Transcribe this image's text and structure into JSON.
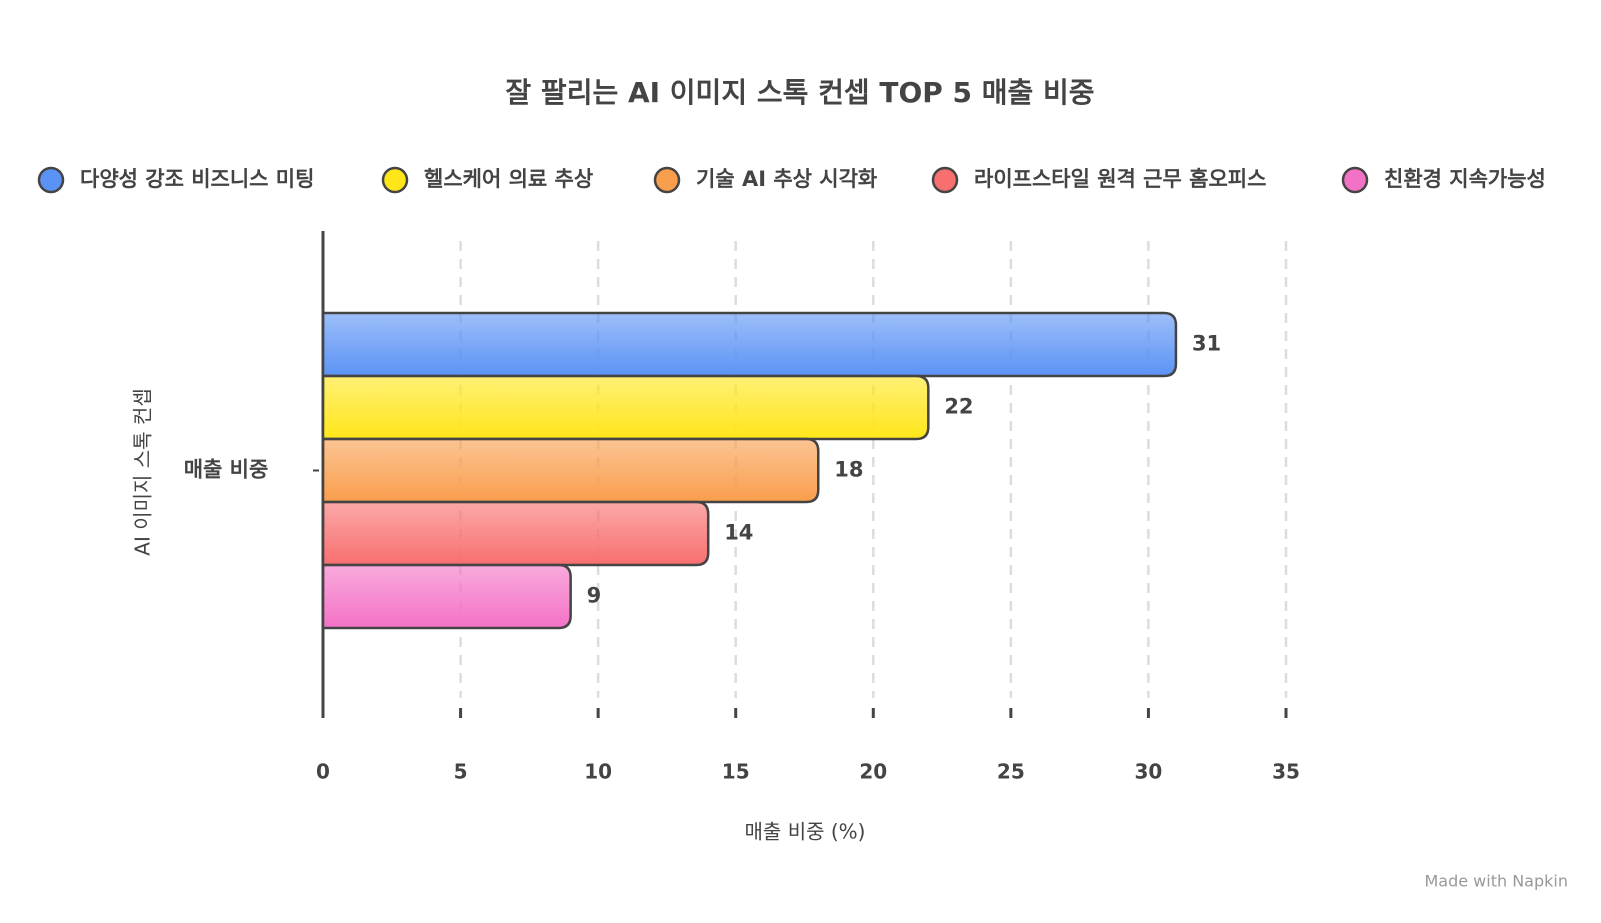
{
  "chart_data": {
    "type": "bar",
    "orientation": "horizontal",
    "title": "잘 팔리는 AI 이미지 스톡 컨셉 TOP 5 매출 비중",
    "categories": [
      "매출 비중"
    ],
    "series": [
      {
        "name": "다양성 강조 비즈니스 미팅",
        "color": "#5b93f5",
        "values": [
          31
        ]
      },
      {
        "name": "헬스케어 의료 추상",
        "color": "#ffe619",
        "values": [
          22
        ]
      },
      {
        "name": "기술 AI 추상 시각화",
        "color": "#f99e4c",
        "values": [
          18
        ]
      },
      {
        "name": "라이프스타일 원격 근무 홈오피스",
        "color": "#f86f6f",
        "values": [
          14
        ]
      },
      {
        "name": "친환경 지속가능성",
        "color": "#f472c6",
        "values": [
          9
        ]
      }
    ],
    "xlim": [
      0,
      35
    ],
    "xticks": [
      0,
      5,
      10,
      15,
      20,
      25,
      30,
      35
    ],
    "x_label": "매출 비중 (%)",
    "y_label": "AI 이미지 스톡 컨셉",
    "grid": true,
    "legend": "top",
    "footer": "Made with Napkin"
  }
}
